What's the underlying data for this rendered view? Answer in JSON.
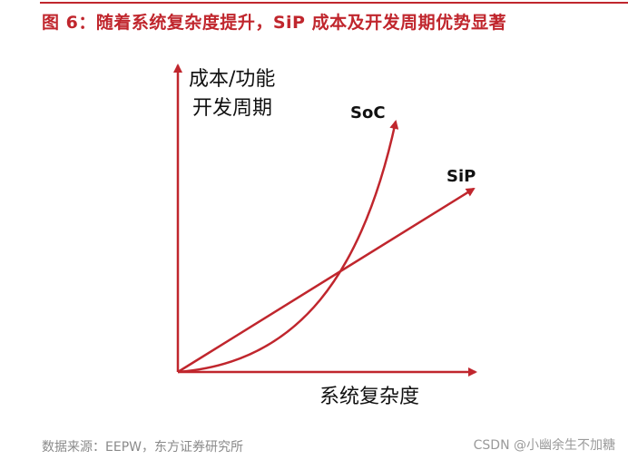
{
  "title": "图 6：随着系统复杂度提升，SiP 成本及开发周期优势显著",
  "diagram": {
    "y_axis_label_line1": "成本/功能",
    "y_axis_label_line2": "开发周期",
    "x_axis_label": "系统复杂度",
    "curves": [
      {
        "label": "SoC",
        "shape": "convex-rising"
      },
      {
        "label": "SiP",
        "shape": "linear"
      }
    ],
    "colors": {
      "axis": "#c0262d",
      "curve": "#c0262d",
      "title": "#c0262d",
      "text": "#111111"
    }
  },
  "source": "数据来源：EEPW，东方证券研究所",
  "watermark": "CSDN @小幽余生不加糖"
}
